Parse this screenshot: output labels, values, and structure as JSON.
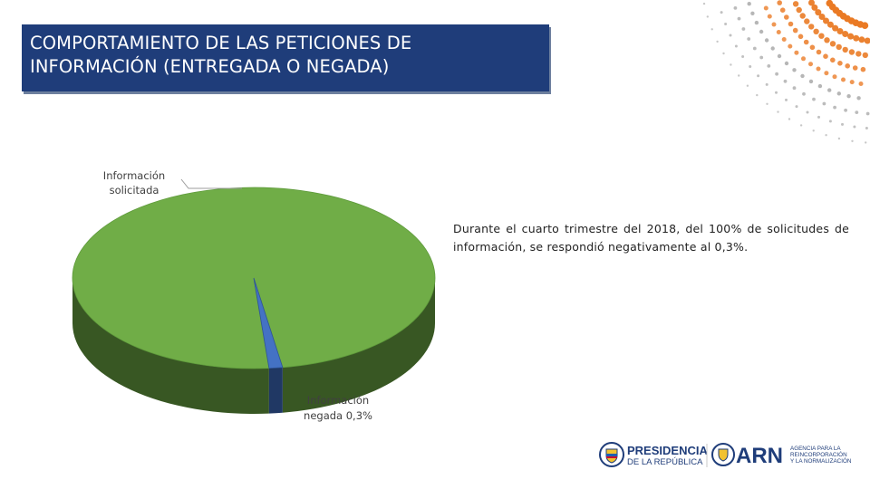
{
  "title": {
    "line1": "COMPORTAMIENTO DE LAS PETICIONES DE",
    "line2": "INFORMACIÓN (ENTREGADA O NEGADA)"
  },
  "description": "Durante el cuarto trimestre del 2018, del 100% de solicitudes de información, se respondió negativamente al 0,3%.",
  "chart_data": {
    "type": "pie",
    "title": "",
    "three_d": true,
    "slices": [
      {
        "label_line1": "Información",
        "label_line2": "solicitada",
        "value": 99.7,
        "color": "#70ad47",
        "side_color": "#385723"
      },
      {
        "label_line1": "Información",
        "label_line2": "negada 0,3%",
        "value": 0.3,
        "color": "#4472c4",
        "side_color": "#203864"
      }
    ],
    "legend": "none"
  },
  "logos": {
    "presidencia_line1": "PRESIDENCIA",
    "presidencia_line2": "DE LA REPÚBLICA",
    "arn_name": "ARN",
    "arn_line1": "AGENCIA PARA LA",
    "arn_line2": "REINCORPORACIÓN",
    "arn_line3": "Y LA NORMALIZACIÓN"
  },
  "colors": {
    "title_bg": "#1f3d7a",
    "dots_orange": "#ea7a24",
    "dots_gray": "#9a9a9a",
    "brand_blue": "#1f3d7a"
  }
}
